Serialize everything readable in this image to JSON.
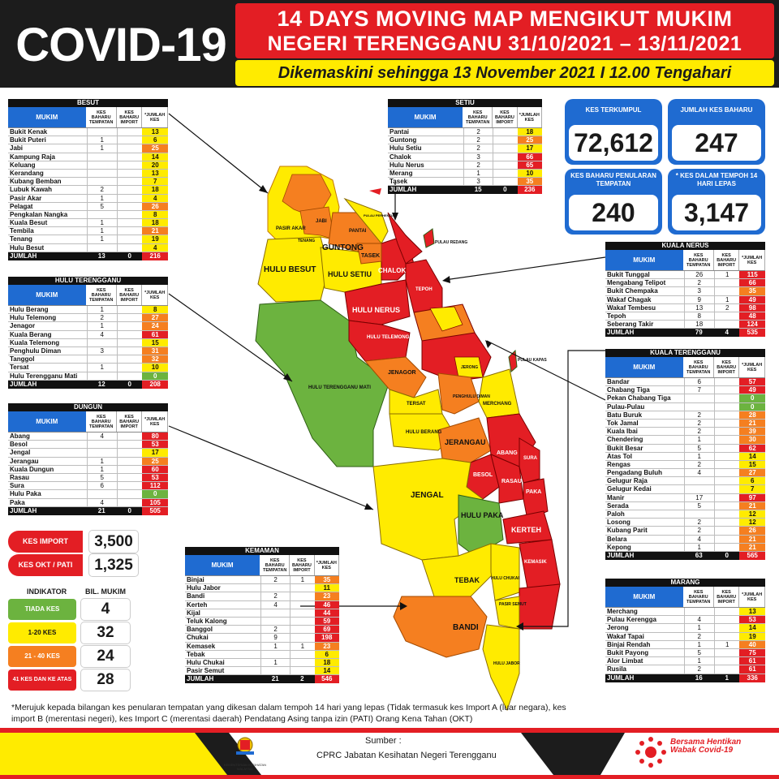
{
  "header": {
    "title": "COVID-19",
    "line1": "14 DAYS MOVING MAP MENGIKUT MUKIM",
    "line2": "NEGERI TERENGGANU 31/10/2021 – 13/11/2021",
    "updated": "Dikemaskini sehingga 13 November 2021 I 12.00 Tengahari"
  },
  "col_headers": {
    "mukim": "MUKIM",
    "tempatan": "KES BAHARU TEMPATAN",
    "import": "KES BAHARU IMPORT",
    "jumlah": "*JUMLAH KES",
    "total_row": "JUMLAH"
  },
  "colors": {
    "red": "#e31e24",
    "orange": "#f57f20",
    "yellow": "#ffeb00",
    "green": "#6cb33f",
    "blue": "#1f6bd1"
  },
  "tables": {
    "besut": {
      "title": "BESUT",
      "rows": [
        {
          "name": "Bukit Kenak",
          "tempatan": "",
          "import": "",
          "jumlah": "13",
          "level": "yellow"
        },
        {
          "name": "Bukit Puteri",
          "tempatan": "1",
          "import": "",
          "jumlah": "6",
          "level": "yellow"
        },
        {
          "name": "Jabi",
          "tempatan": "1",
          "import": "",
          "jumlah": "25",
          "level": "orange"
        },
        {
          "name": "Kampung Raja",
          "tempatan": "",
          "import": "",
          "jumlah": "14",
          "level": "yellow"
        },
        {
          "name": "Keluang",
          "tempatan": "",
          "import": "",
          "jumlah": "20",
          "level": "yellow"
        },
        {
          "name": "Kerandang",
          "tempatan": "",
          "import": "",
          "jumlah": "13",
          "level": "yellow"
        },
        {
          "name": "Kubang Bemban",
          "tempatan": "",
          "import": "",
          "jumlah": "7",
          "level": "yellow"
        },
        {
          "name": "Lubuk Kawah",
          "tempatan": "2",
          "import": "",
          "jumlah": "18",
          "level": "yellow"
        },
        {
          "name": "Pasir Akar",
          "tempatan": "1",
          "import": "",
          "jumlah": "4",
          "level": "yellow"
        },
        {
          "name": "Pelagat",
          "tempatan": "5",
          "import": "",
          "jumlah": "26",
          "level": "orange"
        },
        {
          "name": "Pengkalan Nangka",
          "tempatan": "",
          "import": "",
          "jumlah": "8",
          "level": "yellow"
        },
        {
          "name": "Kuala Besut",
          "tempatan": "1",
          "import": "",
          "jumlah": "18",
          "level": "yellow"
        },
        {
          "name": "Tembila",
          "tempatan": "1",
          "import": "",
          "jumlah": "21",
          "level": "orange"
        },
        {
          "name": "Tenang",
          "tempatan": "1",
          "import": "",
          "jumlah": "19",
          "level": "yellow"
        },
        {
          "name": "Hulu Besut",
          "tempatan": "",
          "import": "",
          "jumlah": "4",
          "level": "yellow"
        }
      ],
      "total": {
        "tempatan": "13",
        "import": "0",
        "jumlah": "216"
      }
    },
    "hulu_terengganu": {
      "title": "HULU TERENGGANU",
      "rows": [
        {
          "name": "Hulu Berang",
          "tempatan": "1",
          "import": "",
          "jumlah": "8",
          "level": "yellow"
        },
        {
          "name": "Hulu Telemong",
          "tempatan": "2",
          "import": "",
          "jumlah": "27",
          "level": "orange"
        },
        {
          "name": "Jenagor",
          "tempatan": "1",
          "import": "",
          "jumlah": "24",
          "level": "orange"
        },
        {
          "name": "Kuala Berang",
          "tempatan": "4",
          "import": "",
          "jumlah": "61",
          "level": "red"
        },
        {
          "name": "Kuala Telemong",
          "tempatan": "",
          "import": "",
          "jumlah": "15",
          "level": "yellow"
        },
        {
          "name": "Penghulu Diman",
          "tempatan": "3",
          "import": "",
          "jumlah": "31",
          "level": "orange"
        },
        {
          "name": "Tanggol",
          "tempatan": "",
          "import": "",
          "jumlah": "32",
          "level": "orange"
        },
        {
          "name": "Tersat",
          "tempatan": "1",
          "import": "",
          "jumlah": "10",
          "level": "yellow"
        },
        {
          "name": "Hulu Terengganu Mati",
          "tempatan": "",
          "import": "",
          "jumlah": "0",
          "level": "green"
        }
      ],
      "total": {
        "tempatan": "12",
        "import": "0",
        "jumlah": "208"
      }
    },
    "dungun": {
      "title": "DUNGUN",
      "rows": [
        {
          "name": "Abang",
          "tempatan": "4",
          "import": "",
          "jumlah": "80",
          "level": "red"
        },
        {
          "name": "Besol",
          "tempatan": "",
          "import": "",
          "jumlah": "53",
          "level": "red"
        },
        {
          "name": "Jengal",
          "tempatan": "",
          "import": "",
          "jumlah": "17",
          "level": "yellow"
        },
        {
          "name": "Jerangau",
          "tempatan": "1",
          "import": "",
          "jumlah": "25",
          "level": "orange"
        },
        {
          "name": "Kuala Dungun",
          "tempatan": "1",
          "import": "",
          "jumlah": "60",
          "level": "red"
        },
        {
          "name": "Rasau",
          "tempatan": "5",
          "import": "",
          "jumlah": "53",
          "level": "red"
        },
        {
          "name": "Sura",
          "tempatan": "6",
          "import": "",
          "jumlah": "112",
          "level": "red"
        },
        {
          "name": "Hulu Paka",
          "tempatan": "",
          "import": "",
          "jumlah": "0",
          "level": "green"
        },
        {
          "name": "Paka",
          "tempatan": "4",
          "import": "",
          "jumlah": "105",
          "level": "red"
        }
      ],
      "total": {
        "tempatan": "21",
        "import": "0",
        "jumlah": "505"
      }
    },
    "setiu": {
      "title": "SETIU",
      "rows": [
        {
          "name": "Pantai",
          "tempatan": "2",
          "import": "",
          "jumlah": "18",
          "level": "yellow"
        },
        {
          "name": "Guntong",
          "tempatan": "2",
          "import": "",
          "jumlah": "25",
          "level": "orange"
        },
        {
          "name": "Hulu Setiu",
          "tempatan": "2",
          "import": "",
          "jumlah": "17",
          "level": "yellow"
        },
        {
          "name": "Chalok",
          "tempatan": "3",
          "import": "",
          "jumlah": "66",
          "level": "red"
        },
        {
          "name": "Hulu Nerus",
          "tempatan": "2",
          "import": "",
          "jumlah": "65",
          "level": "red"
        },
        {
          "name": "Merang",
          "tempatan": "1",
          "import": "",
          "jumlah": "10",
          "level": "yellow"
        },
        {
          "name": "Tasek",
          "tempatan": "3",
          "import": "",
          "jumlah": "35",
          "level": "orange"
        }
      ],
      "total": {
        "tempatan": "15",
        "import": "0",
        "jumlah": "236"
      }
    },
    "kemaman": {
      "title": "KEMAMAN",
      "rows": [
        {
          "name": "Binjai",
          "tempatan": "2",
          "import": "1",
          "jumlah": "35",
          "level": "orange"
        },
        {
          "name": "Hulu Jabor",
          "tempatan": "",
          "import": "",
          "jumlah": "11",
          "level": "yellow"
        },
        {
          "name": "Bandi",
          "tempatan": "2",
          "import": "",
          "jumlah": "23",
          "level": "orange"
        },
        {
          "name": "Kerteh",
          "tempatan": "4",
          "import": "",
          "jumlah": "46",
          "level": "red"
        },
        {
          "name": "Kijal",
          "tempatan": "",
          "import": "",
          "jumlah": "44",
          "level": "red"
        },
        {
          "name": "Teluk Kalong",
          "tempatan": "",
          "import": "",
          "jumlah": "59",
          "level": "red"
        },
        {
          "name": "Banggol",
          "tempatan": "2",
          "import": "",
          "jumlah": "69",
          "level": "red"
        },
        {
          "name": "Chukai",
          "tempatan": "9",
          "import": "",
          "jumlah": "198",
          "level": "red"
        },
        {
          "name": "Kemasek",
          "tempatan": "1",
          "import": "1",
          "jumlah": "23",
          "level": "orange"
        },
        {
          "name": "Tebak",
          "tempatan": "",
          "import": "",
          "jumlah": "6",
          "level": "yellow"
        },
        {
          "name": "Hulu Chukai",
          "tempatan": "1",
          "import": "",
          "jumlah": "18",
          "level": "yellow"
        },
        {
          "name": "Pasir Semut",
          "tempatan": "",
          "import": "",
          "jumlah": "14",
          "level": "yellow"
        }
      ],
      "total": {
        "tempatan": "21",
        "import": "2",
        "jumlah": "546"
      }
    },
    "kuala_nerus": {
      "title": "KUALA NERUS",
      "rows": [
        {
          "name": "Bukit Tunggal",
          "tempatan": "26",
          "import": "1",
          "jumlah": "115",
          "level": "red"
        },
        {
          "name": "Mengabang Telipot",
          "tempatan": "2",
          "import": "",
          "jumlah": "66",
          "level": "red"
        },
        {
          "name": "Bukit Chempaka",
          "tempatan": "3",
          "import": "",
          "jumlah": "35",
          "level": "orange"
        },
        {
          "name": "Wakaf Chagak",
          "tempatan": "9",
          "import": "1",
          "jumlah": "49",
          "level": "red"
        },
        {
          "name": "Wakaf Tembesu",
          "tempatan": "13",
          "import": "2",
          "jumlah": "98",
          "level": "red"
        },
        {
          "name": "Tepoh",
          "tempatan": "8",
          "import": "",
          "jumlah": "48",
          "level": "red"
        },
        {
          "name": "Seberang Takir",
          "tempatan": "18",
          "import": "",
          "jumlah": "124",
          "level": "red"
        }
      ],
      "total": {
        "tempatan": "79",
        "import": "4",
        "jumlah": "535"
      }
    },
    "kuala_terengganu": {
      "title": "KUALA TERENGGANU",
      "rows": [
        {
          "name": "Bandar",
          "tempatan": "6",
          "import": "",
          "jumlah": "57",
          "level": "red"
        },
        {
          "name": "Chabang Tiga",
          "tempatan": "7",
          "import": "",
          "jumlah": "49",
          "level": "red"
        },
        {
          "name": "Pekan Chabang Tiga",
          "tempatan": "",
          "import": "",
          "jumlah": "0",
          "level": "green"
        },
        {
          "name": "Pulau-Pulau",
          "tempatan": "",
          "import": "",
          "jumlah": "0",
          "level": "green"
        },
        {
          "name": "Batu Buruk",
          "tempatan": "2",
          "import": "",
          "jumlah": "28",
          "level": "orange"
        },
        {
          "name": "Tok Jamal",
          "tempatan": "2",
          "import": "",
          "jumlah": "21",
          "level": "orange"
        },
        {
          "name": "Kuala Ibai",
          "tempatan": "2",
          "import": "",
          "jumlah": "39",
          "level": "orange"
        },
        {
          "name": "Chendering",
          "tempatan": "1",
          "import": "",
          "jumlah": "30",
          "level": "orange"
        },
        {
          "name": "Bukit Besar",
          "tempatan": "5",
          "import": "",
          "jumlah": "62",
          "level": "red"
        },
        {
          "name": "Atas Tol",
          "tempatan": "1",
          "import": "",
          "jumlah": "14",
          "level": "yellow"
        },
        {
          "name": "Rengas",
          "tempatan": "2",
          "import": "",
          "jumlah": "15",
          "level": "yellow"
        },
        {
          "name": "Pengadang Buluh",
          "tempatan": "4",
          "import": "",
          "jumlah": "27",
          "level": "orange"
        },
        {
          "name": "Gelugur Raja",
          "tempatan": "",
          "import": "",
          "jumlah": "6",
          "level": "yellow"
        },
        {
          "name": "Gelugur Kedai",
          "tempatan": "",
          "import": "",
          "jumlah": "7",
          "level": "yellow"
        },
        {
          "name": "Manir",
          "tempatan": "17",
          "import": "",
          "jumlah": "97",
          "level": "red"
        },
        {
          "name": "Serada",
          "tempatan": "5",
          "import": "",
          "jumlah": "21",
          "level": "orange"
        },
        {
          "name": "Paloh",
          "tempatan": "",
          "import": "",
          "jumlah": "12",
          "level": "yellow"
        },
        {
          "name": "Losong",
          "tempatan": "2",
          "import": "",
          "jumlah": "12",
          "level": "yellow"
        },
        {
          "name": "Kubang Parit",
          "tempatan": "2",
          "import": "",
          "jumlah": "26",
          "level": "orange"
        },
        {
          "name": "Belara",
          "tempatan": "4",
          "import": "",
          "jumlah": "21",
          "level": "orange"
        },
        {
          "name": "Kepong",
          "tempatan": "1",
          "import": "",
          "jumlah": "21",
          "level": "orange"
        }
      ],
      "total": {
        "tempatan": "63",
        "import": "0",
        "jumlah": "565"
      }
    },
    "marang": {
      "title": "MARANG",
      "rows": [
        {
          "name": "Merchang",
          "tempatan": "",
          "import": "",
          "jumlah": "13",
          "level": "yellow"
        },
        {
          "name": "Pulau Kerengga",
          "tempatan": "4",
          "import": "",
          "jumlah": "53",
          "level": "red"
        },
        {
          "name": "Jerong",
          "tempatan": "1",
          "import": "",
          "jumlah": "14",
          "level": "yellow"
        },
        {
          "name": "Wakaf Tapai",
          "tempatan": "2",
          "import": "",
          "jumlah": "19",
          "level": "yellow"
        },
        {
          "name": "Binjai Rendah",
          "tempatan": "1",
          "import": "1",
          "jumlah": "40",
          "level": "orange"
        },
        {
          "name": "Bukit Payong",
          "tempatan": "5",
          "import": "",
          "jumlah": "75",
          "level": "red"
        },
        {
          "name": "Alor Limbat",
          "tempatan": "1",
          "import": "",
          "jumlah": "61",
          "level": "red"
        },
        {
          "name": "Rusila",
          "tempatan": "2",
          "import": "",
          "jumlah": "61",
          "level": "red"
        }
      ],
      "total": {
        "tempatan": "16",
        "import": "1",
        "jumlah": "336"
      }
    }
  },
  "stats": {
    "kes_terkumpul": {
      "label": "KES TERKUMPUL",
      "value": "72,612"
    },
    "jumlah_kes_baharu": {
      "label": "JUMLAH KES BAHARU",
      "value": "247"
    },
    "kes_baharu_tempatan": {
      "label": "KES BAHARU PENULARAN TEMPATAN",
      "value": "240"
    },
    "kes_14_hari": {
      "label": "* KES DALAM TEMPOH 14 HARI LEPAS",
      "value": "3,147"
    }
  },
  "imports": {
    "kes_import": {
      "label": "KES IMPORT",
      "value": "3,500"
    },
    "kes_okt": {
      "label": "KES OKT / PATI",
      "value": "1,325"
    }
  },
  "legend": {
    "indikator_label": "INDIKATOR",
    "bil_label": "BIL. MUKIM",
    "items": [
      {
        "label": "TIADA KES",
        "value": "4",
        "color": "#6cb33f"
      },
      {
        "label": "1-20 KES",
        "value": "32",
        "color": "#ffeb00"
      },
      {
        "label": "21 - 40 KES",
        "value": "24",
        "color": "#f57f20"
      },
      {
        "label": "41 KES DAN KE ATAS",
        "value": "28",
        "color": "#e31e24"
      }
    ]
  },
  "map_labels": {
    "guntong": "GUNTONG",
    "hulu_besut": "HULU BESUT",
    "hulu_setiu": "HULU SETIU",
    "chalok": "CHALOK",
    "hulu_nerus": "HULU NERUS",
    "tasek": "TASEK",
    "pantai": "PANTAI",
    "jabi": "JABI",
    "tenang": "TENANG",
    "pasir_akar": "PASIR AKAR",
    "hulu_terengganu_mati": "HULU TERENGGANU MATI",
    "hulu_telemong": "HULU TELEMONG",
    "jenagor": "JENAGOR",
    "tersat": "TERSAT",
    "hulu_berang": "HULU BERANG",
    "jerangau": "JERANGAU",
    "abang": "ABANG",
    "besol": "BESOL",
    "rasau": "RASAU",
    "paka": "PAKA",
    "sura": "SURA",
    "jengal": "JENGAL",
    "hulu_paka": "HULU PAKA",
    "kerteh": "KERTEH",
    "kemasik": "KEMASIK",
    "tebak": "TEBAK",
    "bandi": "BANDI",
    "hulu_chukai": "HULU CHUKAI",
    "hulu_jabor": "HULU JABOR",
    "pasir_semut": "PASIR SEMUT",
    "tepoh": "TEPOH",
    "merchang": "MERCHANG",
    "jerong": "JERONG",
    "penghulu_diman": "PENGHULU DIMAN",
    "pulau_redang": "PULAU REDANG",
    "pulau_perhentian": "PULAU PERHENTIAN",
    "pulau_kapas": "PULAU KAPAS"
  },
  "footnote": "*Merujuk kepada bilangan kes penularan tempatan yang dikesan dalam tempoh 14 hari yang lepas (Tidak termasuk kes Import A (luar negara), kes import B (merentasi negeri), kes Import C (merentasi daerah) Pendatang Asing tanpa izin (PATI) Orang Kena Tahan (OKT)",
  "footer": {
    "sumber_label": "Sumber :",
    "sumber_text": "CPRC Jabatan Kesihatan Negeri  Terengganu",
    "campaign": "Bersama Hentikan Wabak Covid-19",
    "crest_caption": "KEMENTERIAN KESIHATAN MALAYSIA"
  }
}
